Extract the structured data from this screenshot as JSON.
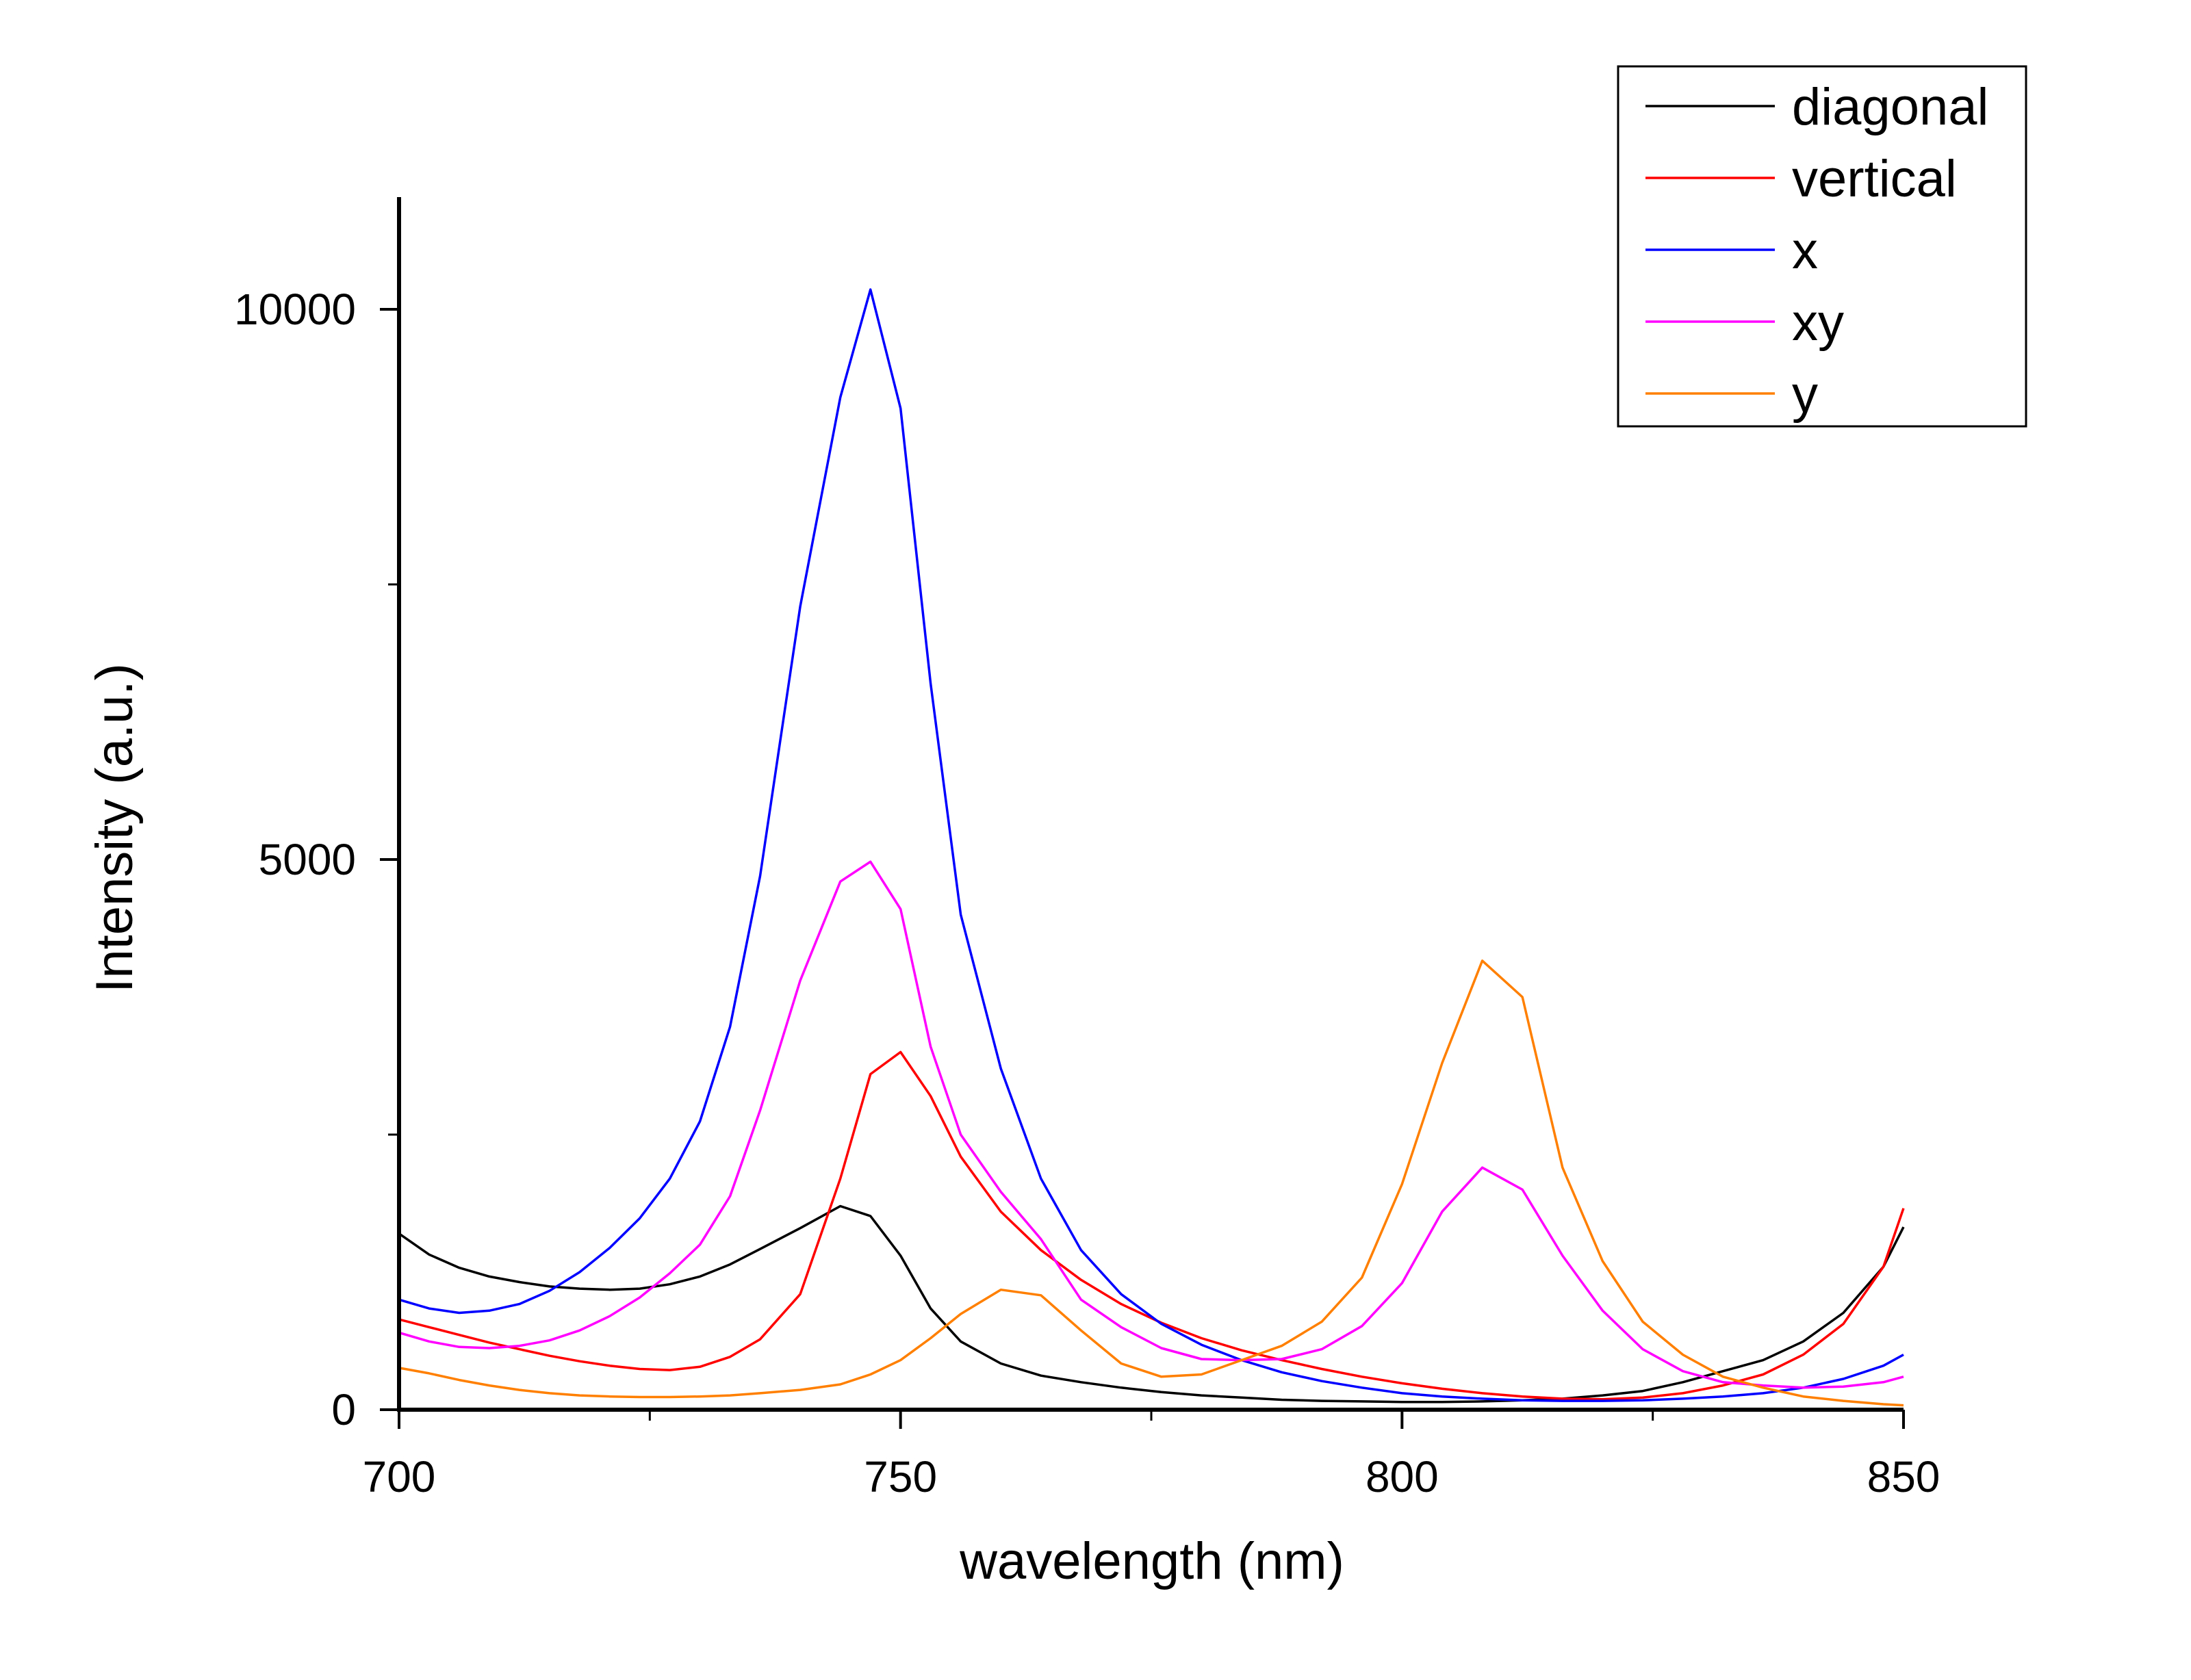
{
  "chart_data": {
    "type": "line",
    "xlabel": "wavelength (nm)",
    "ylabel": "Intensity (a.u.)",
    "xlim": [
      700,
      850
    ],
    "ylim": [
      0,
      11000
    ],
    "x_ticks": [
      700,
      750,
      800,
      850
    ],
    "x_tick_labels": [
      "700",
      "750",
      "800",
      "850"
    ],
    "y_ticks": [
      0,
      5000,
      10000
    ],
    "y_tick_labels": [
      "0",
      "5000",
      "10000"
    ],
    "grid": false,
    "legend_position": "top-right",
    "series": [
      {
        "name": "diagonal",
        "color": "#000000",
        "x": [
          700,
          703,
          706,
          709,
          712,
          715,
          718,
          721,
          724,
          727,
          730,
          733,
          736,
          740,
          744,
          747,
          750,
          753,
          756,
          760,
          764,
          768,
          772,
          776,
          780,
          784,
          788,
          792,
          796,
          800,
          804,
          808,
          812,
          816,
          820,
          824,
          828,
          832,
          836,
          840,
          844,
          848,
          850
        ],
        "y": [
          1600,
          1410,
          1290,
          1210,
          1160,
          1120,
          1100,
          1090,
          1100,
          1140,
          1210,
          1320,
          1460,
          1650,
          1850,
          1760,
          1400,
          920,
          620,
          420,
          310,
          250,
          200,
          160,
          130,
          110,
          90,
          80,
          75,
          70,
          70,
          75,
          85,
          100,
          130,
          170,
          250,
          350,
          450,
          620,
          880,
          1300,
          1660
        ]
      },
      {
        "name": "vertical",
        "color": "#ff0000",
        "x": [
          700,
          703,
          706,
          709,
          712,
          715,
          718,
          721,
          724,
          727,
          730,
          733,
          736,
          740,
          744,
          747,
          750,
          753,
          756,
          760,
          764,
          768,
          772,
          776,
          780,
          784,
          788,
          792,
          796,
          800,
          804,
          808,
          812,
          816,
          820,
          824,
          828,
          832,
          836,
          840,
          844,
          848,
          850
        ],
        "y": [
          820,
          750,
          680,
          610,
          550,
          490,
          440,
          400,
          370,
          360,
          390,
          480,
          640,
          1050,
          2100,
          3050,
          3250,
          2850,
          2300,
          1800,
          1450,
          1180,
          960,
          790,
          650,
          540,
          450,
          370,
          300,
          240,
          190,
          150,
          120,
          100,
          95,
          110,
          150,
          220,
          320,
          500,
          780,
          1300,
          1830
        ]
      },
      {
        "name": "x",
        "color": "#0000ff",
        "x": [
          700,
          703,
          706,
          709,
          712,
          715,
          718,
          721,
          724,
          727,
          730,
          733,
          736,
          740,
          744,
          747,
          750,
          753,
          756,
          760,
          764,
          768,
          772,
          776,
          780,
          784,
          788,
          792,
          796,
          800,
          804,
          808,
          812,
          816,
          820,
          824,
          828,
          832,
          836,
          840,
          844,
          848,
          850
        ],
        "y": [
          1000,
          920,
          880,
          900,
          960,
          1080,
          1250,
          1470,
          1740,
          2100,
          2620,
          3480,
          4850,
          7300,
          9200,
          10180,
          9100,
          6600,
          4500,
          3100,
          2100,
          1450,
          1050,
          780,
          590,
          450,
          340,
          260,
          200,
          150,
          120,
          100,
          85,
          80,
          80,
          85,
          100,
          120,
          150,
          200,
          280,
          400,
          500
        ]
      },
      {
        "name": "xy",
        "color": "#ff00ff",
        "x": [
          700,
          703,
          706,
          709,
          712,
          715,
          718,
          721,
          724,
          727,
          730,
          733,
          736,
          740,
          744,
          747,
          750,
          753,
          756,
          760,
          764,
          768,
          772,
          776,
          780,
          784,
          788,
          792,
          796,
          800,
          804,
          808,
          812,
          816,
          820,
          824,
          828,
          832,
          836,
          840,
          844,
          848,
          850
        ],
        "y": [
          700,
          620,
          570,
          560,
          580,
          630,
          720,
          850,
          1020,
          1240,
          1500,
          1940,
          2720,
          3900,
          4800,
          4980,
          4550,
          3300,
          2500,
          1980,
          1550,
          1000,
          750,
          560,
          460,
          450,
          460,
          550,
          760,
          1150,
          1800,
          2200,
          2000,
          1400,
          900,
          550,
          350,
          250,
          220,
          200,
          210,
          250,
          300
        ]
      },
      {
        "name": "y",
        "color": "#ff8000",
        "x": [
          700,
          703,
          706,
          709,
          712,
          715,
          718,
          721,
          724,
          727,
          730,
          733,
          736,
          740,
          744,
          747,
          750,
          753,
          756,
          760,
          764,
          768,
          772,
          776,
          780,
          784,
          788,
          792,
          796,
          800,
          804,
          808,
          812,
          816,
          820,
          824,
          828,
          832,
          836,
          840,
          844,
          848,
          850
        ],
        "y": [
          380,
          330,
          270,
          220,
          180,
          150,
          130,
          120,
          115,
          115,
          120,
          130,
          150,
          180,
          230,
          320,
          450,
          650,
          870,
          1090,
          1040,
          720,
          420,
          300,
          320,
          450,
          580,
          800,
          1200,
          2050,
          3150,
          4080,
          3750,
          2200,
          1350,
          800,
          500,
          300,
          200,
          120,
          80,
          50,
          40
        ]
      }
    ]
  }
}
